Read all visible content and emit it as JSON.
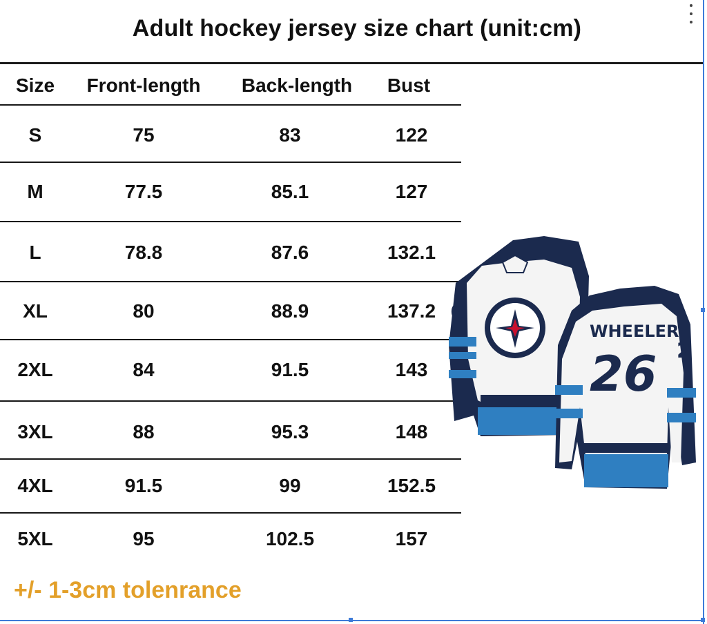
{
  "title": "Adult hockey jersey size chart (unit:cm)",
  "table": {
    "headers": [
      "Size",
      "Front-length",
      "Back-length",
      "Bust"
    ],
    "rows": [
      [
        "S",
        "75",
        "83",
        "122"
      ],
      [
        "M",
        "77.5",
        "85.1",
        "127"
      ],
      [
        "L",
        "78.8",
        "87.6",
        "132.1"
      ],
      [
        "XL",
        "80",
        "88.9",
        "137.2"
      ],
      [
        "2XL",
        "84",
        "91.5",
        "143"
      ],
      [
        "3XL",
        "88",
        "95.3",
        "148"
      ],
      [
        "4XL",
        "91.5",
        "99",
        "152.5"
      ],
      [
        "5XL",
        "95",
        "102.5",
        "157"
      ]
    ]
  },
  "note": "+/- 1-3cm tolenrance",
  "jersey": {
    "name": "WHEELER",
    "number": "26",
    "sleeve_number_left": "6",
    "sleeve_number_right": "2",
    "colors": {
      "navy": "#1b2a4e",
      "blue": "#2f7fc1",
      "white": "#f4f4f4"
    }
  },
  "colors": {
    "note": "#e3a02a",
    "selection": "#3d7bd8"
  }
}
